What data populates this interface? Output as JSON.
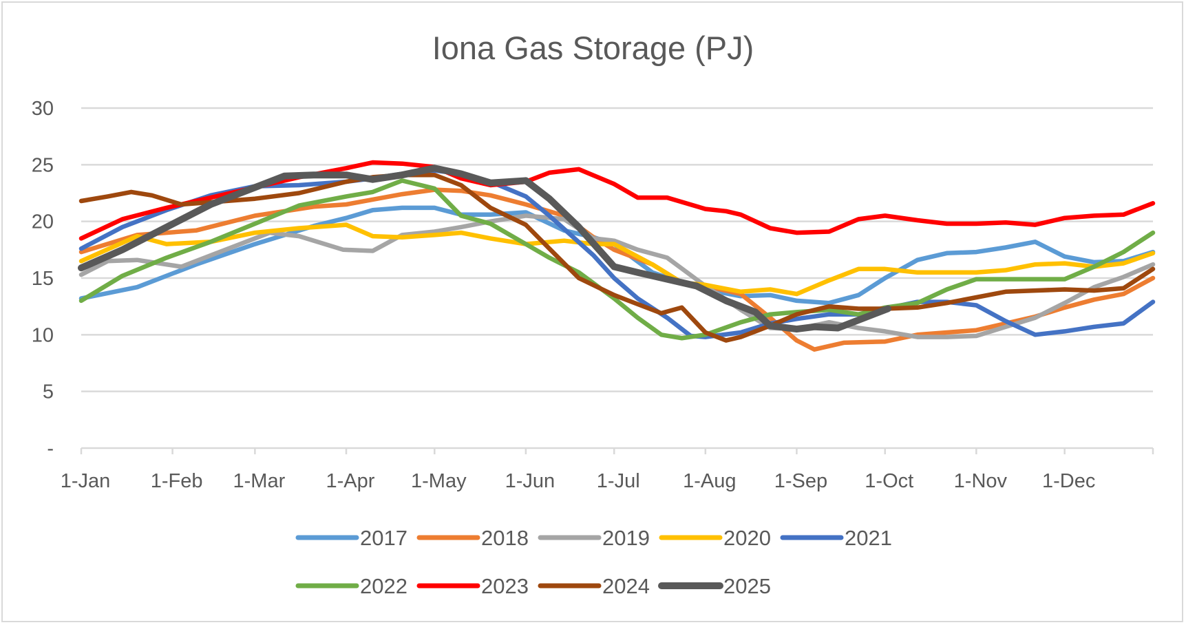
{
  "chart_data": {
    "type": "line",
    "title": "Iona Gas Storage (PJ)",
    "xlabel": "",
    "ylabel": "",
    "ylim": [
      0,
      30
    ],
    "yticks": [
      0,
      5,
      10,
      15,
      20,
      25,
      30
    ],
    "ytick_labels": [
      "-",
      "5",
      "10",
      "15",
      "20",
      "25",
      "30"
    ],
    "xlim": [
      1,
      365
    ],
    "xticks": [
      1,
      32,
      60,
      91,
      121,
      152,
      182,
      213,
      244,
      274,
      305,
      335
    ],
    "xtick_labels": [
      "1-Jan",
      "1-Feb",
      "1-Mar",
      "1-Apr",
      "1-May",
      "1-Jun",
      "1-Jul",
      "1-Aug",
      "1-Sep",
      "1-Oct",
      "1-Nov",
      "1-Dec"
    ],
    "grid": true,
    "legend_position": "bottom",
    "series": [
      {
        "name": "2017",
        "color": "#5B9BD5",
        "x": [
          1,
          20,
          40,
          60,
          80,
          91,
          100,
          110,
          121,
          130,
          140,
          152,
          165,
          175,
          182,
          195,
          205,
          213,
          225,
          235,
          244,
          255,
          265,
          274,
          285,
          295,
          305,
          315,
          325,
          335,
          345,
          355,
          365
        ],
        "y": [
          13.2,
          14.2,
          16.2,
          18,
          19.6,
          20.3,
          21,
          21.2,
          21.2,
          20.6,
          20.6,
          20.8,
          19.2,
          18.6,
          18,
          15.5,
          14.6,
          14,
          13.4,
          13.5,
          13,
          12.8,
          13.5,
          15,
          16.6,
          17.2,
          17.3,
          17.7,
          18.2,
          16.9,
          16.4,
          16.5,
          17.3
        ]
      },
      {
        "name": "2018",
        "color": "#ED7D31",
        "x": [
          1,
          20,
          40,
          60,
          80,
          91,
          110,
          121,
          130,
          140,
          152,
          165,
          175,
          182,
          195,
          205,
          213,
          225,
          235,
          244,
          250,
          260,
          274,
          285,
          295,
          305,
          315,
          325,
          335,
          345,
          355,
          365
        ],
        "y": [
          17.3,
          18.8,
          19.2,
          20.5,
          21.3,
          21.5,
          22.4,
          22.8,
          22.7,
          22.3,
          21.5,
          20.5,
          18.6,
          17.5,
          16.2,
          14.6,
          14.3,
          13.6,
          11.5,
          9.5,
          8.7,
          9.3,
          9.4,
          10,
          10.2,
          10.4,
          11,
          11.6,
          12.4,
          13.1,
          13.6,
          15
        ]
      },
      {
        "name": "2019",
        "color": "#A5A5A5",
        "x": [
          1,
          10,
          20,
          35,
          50,
          65,
          75,
          90,
          100,
          110,
          121,
          130,
          140,
          152,
          165,
          175,
          182,
          190,
          200,
          213,
          225,
          235,
          244,
          255,
          265,
          274,
          285,
          295,
          305,
          315,
          325,
          335,
          345,
          355,
          365
        ],
        "y": [
          15.3,
          16.5,
          16.6,
          16,
          17.5,
          19,
          18.7,
          17.5,
          17.4,
          18.8,
          19.1,
          19.5,
          20,
          20.5,
          20.2,
          18.5,
          18.3,
          17.5,
          16.8,
          14.3,
          12.2,
          10.6,
          10.5,
          11.1,
          10.6,
          10.3,
          9.8,
          9.8,
          9.9,
          10.7,
          11.5,
          12.8,
          14.2,
          15.1,
          16.2
        ]
      },
      {
        "name": "2020",
        "color": "#FFC000",
        "x": [
          1,
          20,
          30,
          45,
          60,
          75,
          91,
          100,
          110,
          121,
          130,
          140,
          152,
          165,
          175,
          182,
          195,
          205,
          213,
          225,
          235,
          244,
          255,
          265,
          274,
          285,
          295,
          305,
          315,
          325,
          335,
          345,
          355,
          365
        ],
        "y": [
          16.5,
          18.7,
          18,
          18.2,
          19,
          19.4,
          19.7,
          18.7,
          18.6,
          18.8,
          19,
          18.5,
          18,
          18.3,
          18,
          18,
          16.2,
          14.6,
          14.4,
          13.8,
          14,
          13.6,
          14.8,
          15.8,
          15.8,
          15.5,
          15.5,
          15.5,
          15.7,
          16.2,
          16.3,
          16,
          16.3,
          17.2
        ]
      },
      {
        "name": "2021",
        "color": "#4472C4",
        "x": [
          1,
          15,
          30,
          45,
          60,
          75,
          91,
          100,
          110,
          121,
          130,
          140,
          152,
          160,
          175,
          182,
          190,
          200,
          208,
          213,
          225,
          235,
          244,
          255,
          265,
          274,
          285,
          295,
          305,
          315,
          325,
          335,
          345,
          355,
          365
        ],
        "y": [
          17.6,
          19.5,
          21,
          22.3,
          23.1,
          23.2,
          23.5,
          23.8,
          24.2,
          24.5,
          24.2,
          23.5,
          22.2,
          20.5,
          17,
          15,
          13.2,
          11.5,
          9.9,
          9.8,
          10.2,
          11,
          11.4,
          11.8,
          11.8,
          12.3,
          12.9,
          12.9,
          12.6,
          11.2,
          10,
          10.3,
          10.7,
          11,
          12.9
        ]
      },
      {
        "name": "2022",
        "color": "#70AD47",
        "x": [
          1,
          15,
          30,
          45,
          60,
          75,
          91,
          100,
          110,
          121,
          130,
          140,
          152,
          160,
          170,
          182,
          190,
          198,
          205,
          213,
          225,
          235,
          244,
          255,
          265,
          274,
          285,
          295,
          305,
          315,
          325,
          335,
          345,
          355,
          365
        ],
        "y": [
          13,
          15.2,
          16.8,
          18.2,
          19.8,
          21.4,
          22.2,
          22.6,
          23.6,
          22.9,
          20.5,
          19.8,
          18,
          16.8,
          15.5,
          13.2,
          11.5,
          10,
          9.7,
          10,
          11.1,
          11.8,
          12,
          12.2,
          11.8,
          12.4,
          12.8,
          14,
          14.9,
          14.9,
          14.9,
          14.9,
          16,
          17.3,
          19
        ]
      },
      {
        "name": "2023",
        "color": "#FF0000",
        "x": [
          1,
          15,
          30,
          45,
          60,
          75,
          91,
          100,
          110,
          121,
          130,
          140,
          152,
          160,
          170,
          182,
          190,
          200,
          213,
          220,
          225,
          235,
          244,
          255,
          265,
          274,
          285,
          295,
          305,
          315,
          325,
          335,
          345,
          355,
          365
        ],
        "y": [
          18.5,
          20.2,
          21.2,
          22.1,
          23,
          23.9,
          24.7,
          25.2,
          25.1,
          24.8,
          23.8,
          23.2,
          23.5,
          24.3,
          24.6,
          23.3,
          22.1,
          22.1,
          21.1,
          20.9,
          20.6,
          19.4,
          19,
          19.1,
          20.2,
          20.5,
          20.1,
          19.8,
          19.8,
          19.9,
          19.7,
          20.3,
          20.5,
          20.6,
          21.6
        ]
      },
      {
        "name": "2024",
        "color": "#9E480E",
        "x": [
          1,
          10,
          18,
          25,
          35,
          45,
          60,
          75,
          91,
          100,
          110,
          121,
          130,
          140,
          152,
          160,
          170,
          182,
          190,
          198,
          205,
          213,
          220,
          225,
          235,
          244,
          255,
          265,
          274,
          285,
          295,
          305,
          315,
          325,
          335,
          345,
          355,
          365
        ],
        "y": [
          21.8,
          22.2,
          22.6,
          22.3,
          21.5,
          21.7,
          22,
          22.5,
          23.5,
          23.9,
          24.1,
          24.1,
          23.2,
          21.2,
          19.7,
          17.6,
          15,
          13.5,
          12.7,
          11.9,
          12.4,
          10.2,
          9.5,
          9.8,
          10.8,
          11.8,
          12.5,
          12.3,
          12.3,
          12.4,
          12.8,
          13.3,
          13.8,
          13.9,
          14,
          13.9,
          14.1,
          15.8
        ]
      },
      {
        "name": "2025",
        "color": "#595959",
        "x": [
          1,
          15,
          30,
          45,
          60,
          70,
          80,
          91,
          100,
          110,
          121,
          130,
          140,
          152,
          160,
          170,
          182,
          190,
          200,
          210,
          220,
          230,
          235,
          244,
          250,
          258,
          265,
          275
        ],
        "y": [
          15.9,
          17.5,
          19.5,
          21.5,
          23,
          24,
          24.1,
          24.1,
          23.7,
          24.1,
          24.7,
          24.2,
          23.4,
          23.6,
          22,
          19.5,
          16,
          15.5,
          14.9,
          14.3,
          13,
          12,
          10.8,
          10.5,
          10.7,
          10.6,
          11.3,
          12.3
        ]
      }
    ]
  }
}
